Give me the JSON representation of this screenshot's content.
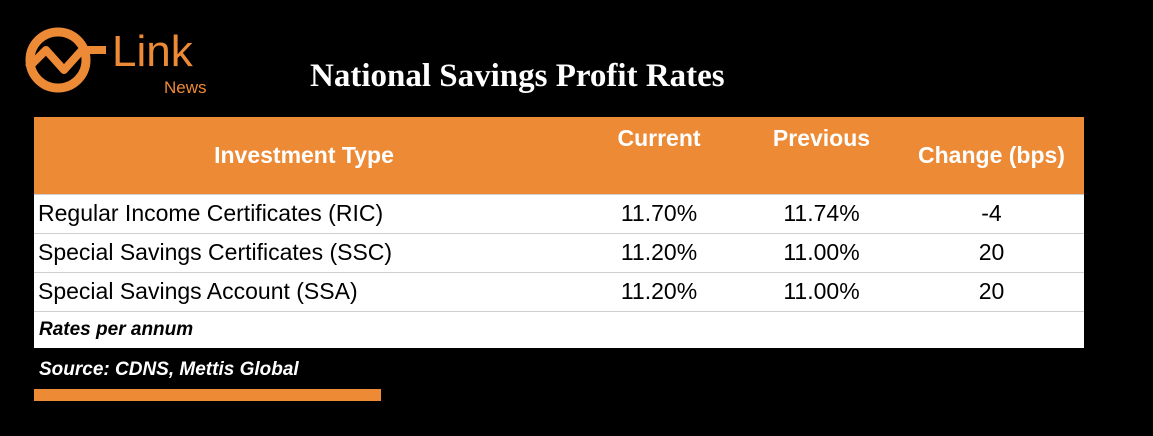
{
  "brand": {
    "name": "Link",
    "sub": "News",
    "color": "#ED8A36",
    "icon": "chart-line-logo-icon"
  },
  "title": "National Savings Profit Rates",
  "chart_data": {
    "type": "table",
    "title": "National Savings Profit Rates",
    "columns": [
      "Investment Type",
      "Current",
      "Previous",
      "Change (bps)"
    ],
    "rows": [
      [
        "Regular Income Certificates (RIC)",
        "11.70%",
        "11.74%",
        "-4"
      ],
      [
        "Special Savings Certificates (SSC)",
        "11.20%",
        "11.00%",
        "20"
      ],
      [
        "Special Savings Account (SSA)",
        "11.20%",
        "11.00%",
        "20"
      ]
    ],
    "note": "Rates per annum",
    "source": "Source: CDNS, Mettis Global"
  },
  "colors": {
    "accent": "#ED8A36",
    "background": "#000000",
    "row": "#FFFFFF"
  }
}
